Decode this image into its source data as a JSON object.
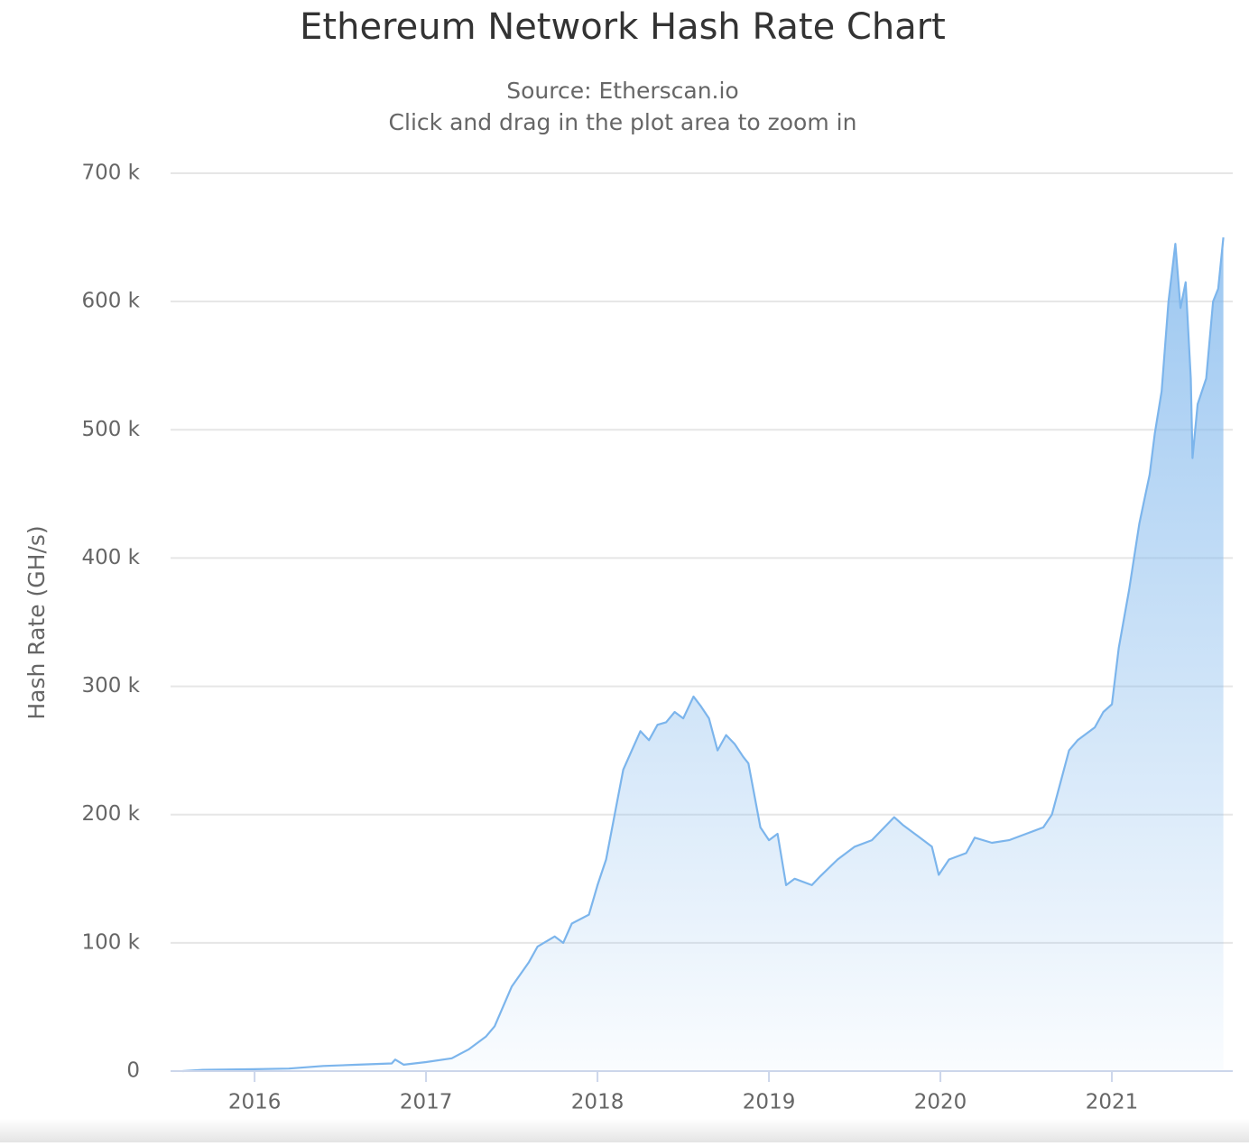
{
  "chart_data": {
    "type": "area",
    "title": "Ethereum Network Hash Rate Chart",
    "subtitle": [
      "Source: Etherscan.io",
      "Click and drag in the plot area to zoom in"
    ],
    "y_label": "Hash Rate (GH/s)",
    "color": "#7cb5ec",
    "grid": true,
    "xlim": [
      2015.51,
      2021.705
    ],
    "xticks": [
      2016,
      2017,
      2018,
      2019,
      2020,
      2021
    ],
    "ylim": [
      0,
      700000
    ],
    "yticks": [
      {
        "value": 0,
        "label": "0"
      },
      {
        "value": 100000,
        "label": "100 k"
      },
      {
        "value": 200000,
        "label": "200 k"
      },
      {
        "value": 300000,
        "label": "300 k"
      },
      {
        "value": 400000,
        "label": "400 k"
      },
      {
        "value": 500000,
        "label": "500 k"
      },
      {
        "value": 600000,
        "label": "600 k"
      },
      {
        "value": 700000,
        "label": "700 k"
      }
    ],
    "x": [
      2015.58,
      2015.7,
      2016.0,
      2016.2,
      2016.4,
      2016.6,
      2016.8,
      2016.82,
      2016.87,
      2017.0,
      2017.15,
      2017.25,
      2017.35,
      2017.4,
      2017.5,
      2017.6,
      2017.65,
      2017.75,
      2017.8,
      2017.85,
      2017.95,
      2018.0,
      2018.05,
      2018.1,
      2018.15,
      2018.2,
      2018.25,
      2018.3,
      2018.35,
      2018.4,
      2018.45,
      2018.5,
      2018.56,
      2018.6,
      2018.65,
      2018.7,
      2018.75,
      2018.8,
      2018.85,
      2018.88,
      2018.95,
      2019.0,
      2019.05,
      2019.1,
      2019.15,
      2019.25,
      2019.3,
      2019.4,
      2019.5,
      2019.6,
      2019.73,
      2019.78,
      2019.85,
      2019.95,
      2019.99,
      2020.05,
      2020.15,
      2020.2,
      2020.3,
      2020.4,
      2020.5,
      2020.6,
      2020.65,
      2020.7,
      2020.75,
      2020.8,
      2020.9,
      2020.95,
      2021.0,
      2021.04,
      2021.1,
      2021.16,
      2021.22,
      2021.25,
      2021.29,
      2021.33,
      2021.37,
      2021.4,
      2021.43,
      2021.46,
      2021.47,
      2021.5,
      2021.55,
      2021.59,
      2021.62,
      2021.65
    ],
    "values": [
      0,
      1000,
      1500,
      2000,
      4000,
      5000,
      6000,
      9000,
      5000,
      7000,
      10000,
      17000,
      27000,
      35000,
      66000,
      85000,
      97000,
      105000,
      100000,
      115000,
      122000,
      145000,
      165000,
      200000,
      235000,
      250000,
      265000,
      258000,
      270000,
      272000,
      280000,
      275000,
      292000,
      285000,
      275000,
      250000,
      262000,
      255000,
      245000,
      240000,
      190000,
      180000,
      185000,
      145000,
      150000,
      145000,
      152000,
      165000,
      175000,
      180000,
      198000,
      192000,
      185000,
      175000,
      153000,
      165000,
      170000,
      182000,
      178000,
      180000,
      185000,
      190000,
      200000,
      225000,
      250000,
      258000,
      268000,
      280000,
      286000,
      330000,
      375000,
      427000,
      465000,
      497000,
      530000,
      600000,
      645000,
      595000,
      615000,
      540000,
      478000,
      520000,
      540000,
      600000,
      610000,
      650000
    ]
  }
}
